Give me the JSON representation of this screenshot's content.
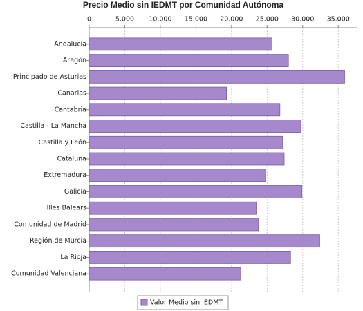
{
  "chart_data": {
    "type": "bar",
    "orientation": "horizontal",
    "title": "Precio Medio sin IEDMT por Comunidad Autónoma",
    "categories": [
      "Andalucía",
      "Aragón",
      "Principado de Asturias",
      "Canarias",
      "Cantabria",
      "Castilla - La Mancha",
      "Castilla y León",
      "Cataluña",
      "Extremadura",
      "Galicia",
      "Illes Balears",
      "Comunidad de Madrid",
      "Región de Murcia",
      "La Rioja",
      "Comunidad Valenciana"
    ],
    "series": [
      {
        "name": "Valor Medio sin IEDMT",
        "color": "#a688cc",
        "values": [
          25700,
          28000,
          35900,
          19300,
          26800,
          29750,
          27200,
          27400,
          24800,
          29900,
          23500,
          23800,
          32400,
          28300,
          21300
        ]
      }
    ],
    "xlim": [
      0,
      37700
    ],
    "xticks": [
      0,
      {
        "value": 5000,
        "label": "5.000"
      },
      {
        "value": 10000,
        "label": "10.000"
      },
      {
        "value": 15000,
        "label": "15.000"
      },
      {
        "value": 20000,
        "label": "20.000"
      },
      {
        "value": 25000,
        "label": "25.000"
      },
      {
        "value": 30000,
        "label": "30.000"
      },
      {
        "value": 35000,
        "label": "35.000"
      }
    ],
    "grid": true,
    "legend": "bottom"
  }
}
